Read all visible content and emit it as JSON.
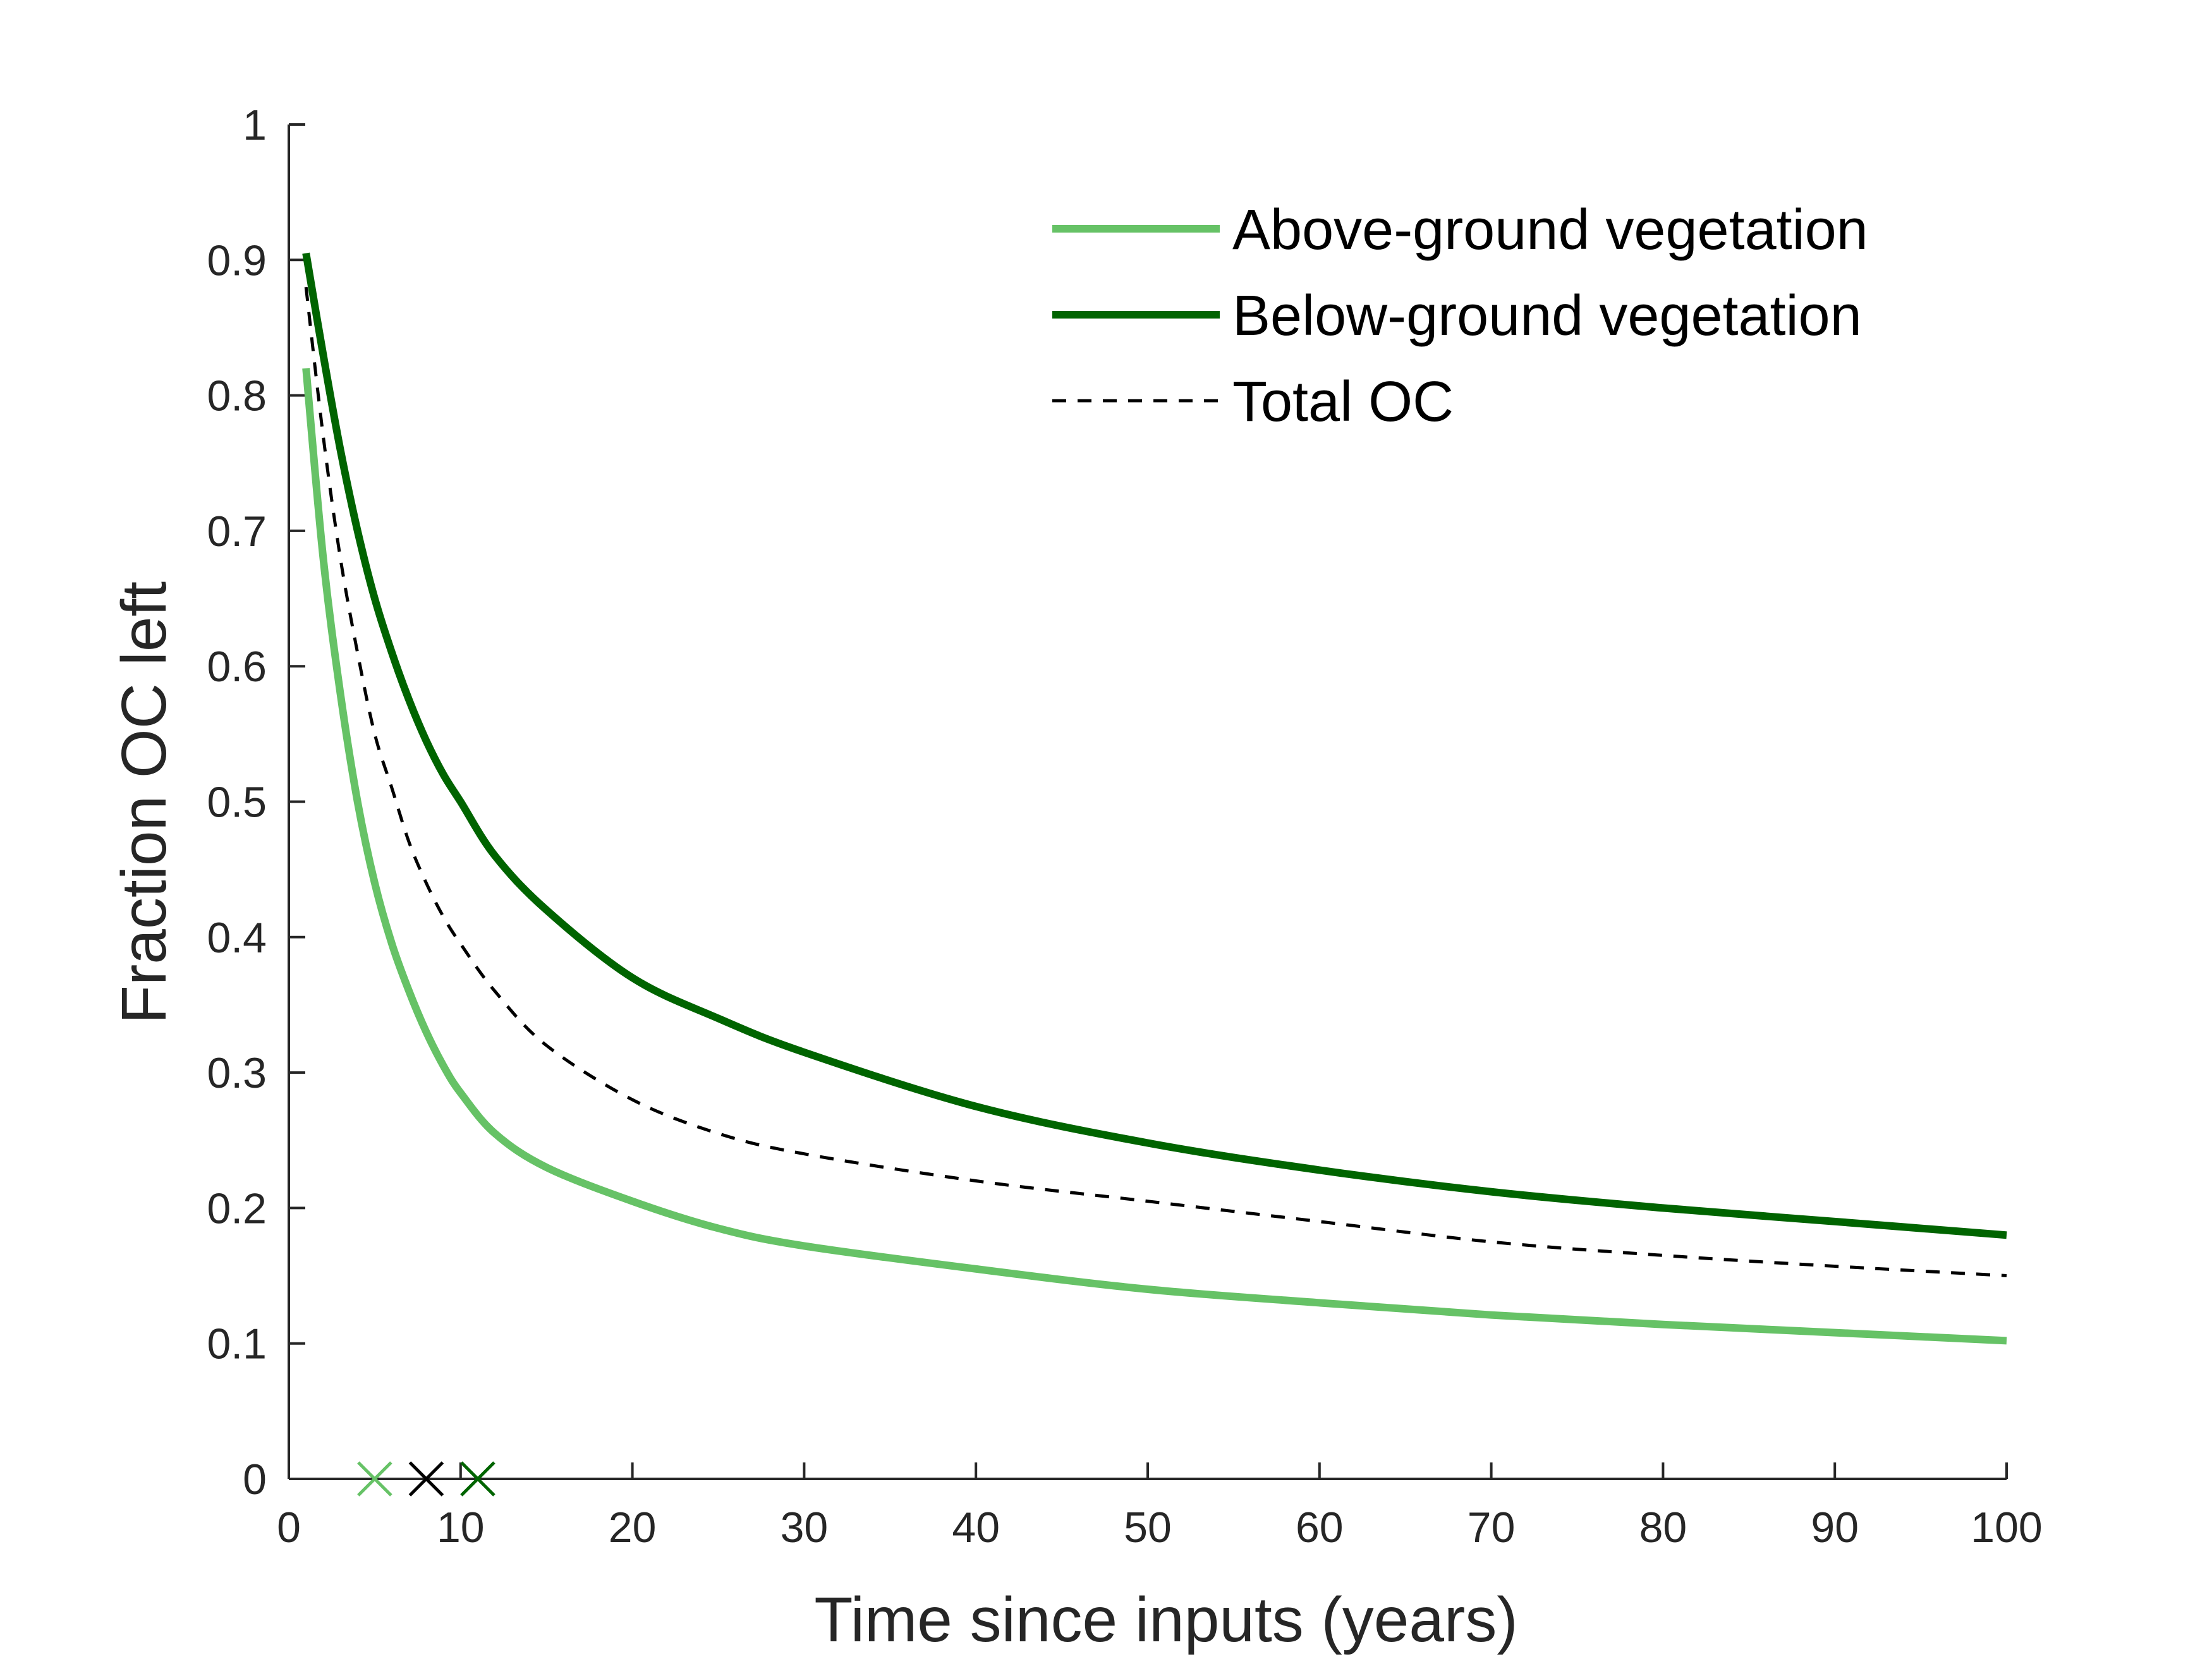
{
  "chart_data": {
    "type": "line",
    "title": "",
    "xlabel": "Time since inputs (years)",
    "ylabel": "Fraction OC left",
    "xlim": [
      0,
      100
    ],
    "ylim": [
      0,
      1
    ],
    "x_ticks": [
      0,
      10,
      20,
      30,
      40,
      50,
      60,
      70,
      80,
      90,
      100
    ],
    "x_tick_labels": [
      "0",
      "10",
      "20",
      "30",
      "40",
      "50",
      "60",
      "70",
      "80",
      "90",
      "100"
    ],
    "y_ticks": [
      0,
      0.1,
      0.2,
      0.3,
      0.4,
      0.5,
      0.6,
      0.7,
      0.8,
      0.9,
      1
    ],
    "y_tick_labels": [
      "0",
      "0.1",
      "0.2",
      "0.3",
      "0.4",
      "0.5",
      "0.6",
      "0.7",
      "0.8",
      "0.9",
      "1"
    ],
    "grid": false,
    "legend_position": "top-right",
    "series": [
      {
        "name": "Above-ground vegetation",
        "color": "#66c266",
        "style": "solid",
        "x": [
          1,
          2,
          3,
          4,
          5,
          6,
          7,
          8,
          9,
          10,
          12,
          15,
          20,
          25,
          30,
          40,
          50,
          60,
          70,
          80,
          90,
          100
        ],
        "y": [
          0.82,
          0.68,
          0.58,
          0.5,
          0.44,
          0.395,
          0.36,
          0.33,
          0.305,
          0.285,
          0.255,
          0.23,
          0.205,
          0.185,
          0.172,
          0.155,
          0.14,
          0.13,
          0.121,
          0.114,
          0.108,
          0.102
        ]
      },
      {
        "name": "Below-ground vegetation",
        "color": "#006400",
        "style": "solid",
        "x": [
          1,
          2,
          3,
          4,
          5,
          6,
          7,
          8,
          9,
          10,
          12,
          15,
          20,
          25,
          30,
          40,
          50,
          60,
          70,
          80,
          90,
          100
        ],
        "y": [
          0.905,
          0.83,
          0.76,
          0.7,
          0.65,
          0.61,
          0.575,
          0.545,
          0.52,
          0.5,
          0.46,
          0.42,
          0.37,
          0.34,
          0.315,
          0.275,
          0.248,
          0.228,
          0.212,
          0.2,
          0.19,
          0.18
        ]
      },
      {
        "name": "Total OC",
        "color": "#000000",
        "style": "dashed",
        "x": [
          1,
          2,
          3,
          4,
          5,
          6,
          7,
          8,
          9,
          10,
          12,
          15,
          20,
          25,
          30,
          40,
          50,
          60,
          70,
          80,
          90,
          100
        ],
        "y": [
          0.88,
          0.77,
          0.68,
          0.61,
          0.55,
          0.51,
          0.47,
          0.44,
          0.415,
          0.395,
          0.36,
          0.32,
          0.28,
          0.255,
          0.24,
          0.22,
          0.205,
          0.19,
          0.175,
          0.165,
          0.157,
          0.15
        ]
      }
    ],
    "markers": [
      {
        "x": 5,
        "y": 0,
        "symbol": "x",
        "color": "#66c266"
      },
      {
        "x": 8,
        "y": 0,
        "symbol": "x",
        "color": "#000000"
      },
      {
        "x": 11,
        "y": 0,
        "symbol": "x",
        "color": "#006400"
      }
    ]
  }
}
